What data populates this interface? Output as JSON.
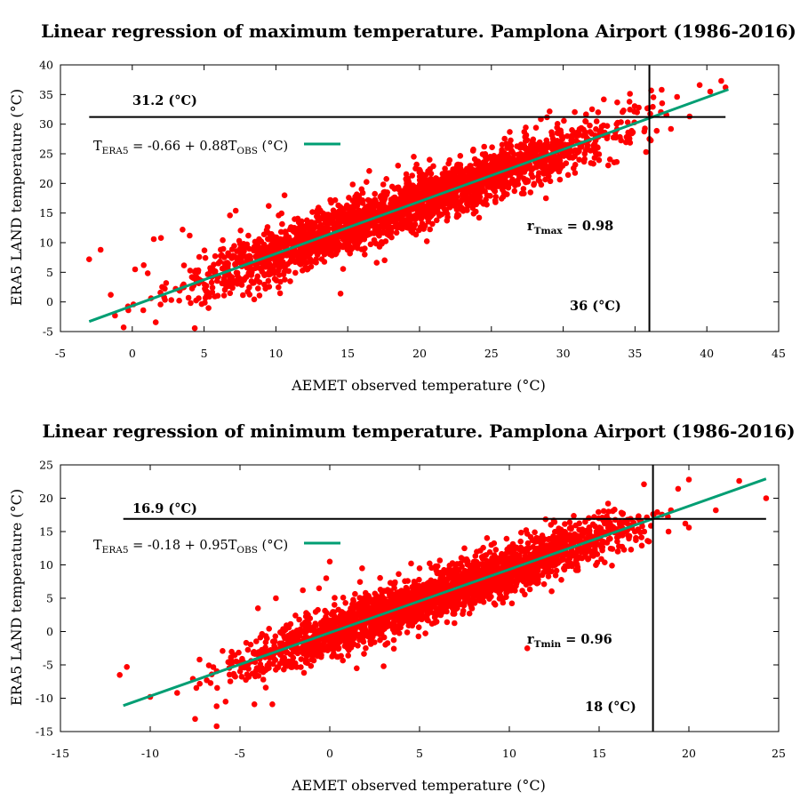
{
  "colors": {
    "points": "#ff0000",
    "fit_line": "#009e73",
    "ref_lines": "#000000"
  },
  "chart_data": [
    {
      "type": "scatter",
      "title": "Linear regression of maximum temperature. Pamplona Airport (1986-2016)",
      "xlabel": "AEMET observed temperature (°C)",
      "ylabel": "ERA5 LAND temperature (°C)",
      "xlim": [
        -5,
        45
      ],
      "ylim": [
        -5,
        40
      ],
      "x_ticks": [
        -5,
        0,
        5,
        10,
        15,
        20,
        25,
        30,
        35,
        40,
        45
      ],
      "y_ticks": [
        -5,
        0,
        5,
        10,
        15,
        20,
        25,
        30,
        35,
        40
      ],
      "grid": false,
      "legend_position": "top-left",
      "point_cloud": {
        "x_range": [
          -3,
          41.5
        ],
        "intercept": -0.66,
        "slope": 0.88,
        "spread": 2.2,
        "count": 2600
      },
      "outliers": [
        [
          -3,
          7.2
        ],
        [
          -2.2,
          8.8
        ],
        [
          -1.5,
          1.2
        ],
        [
          -0.6,
          -4.3
        ],
        [
          -1.2,
          -2.3
        ],
        [
          0.2,
          5.5
        ],
        [
          0.8,
          6.2
        ],
        [
          1.5,
          10.6
        ],
        [
          2,
          10.8
        ],
        [
          3.5,
          12.2
        ],
        [
          4,
          11.2
        ],
        [
          6.8,
          14.6
        ],
        [
          7.2,
          15.4
        ],
        [
          9.5,
          16.2
        ],
        [
          10.6,
          18
        ],
        [
          14.5,
          1.4
        ],
        [
          16.5,
          22.1
        ],
        [
          18.5,
          23
        ],
        [
          19.6,
          24.5
        ],
        [
          20.7,
          24
        ],
        [
          24.5,
          26.2
        ],
        [
          26,
          19.5
        ],
        [
          28.8,
          17.5
        ],
        [
          31.5,
          25
        ],
        [
          36,
          27.5
        ],
        [
          37.5,
          29.2
        ],
        [
          39.5,
          36.6
        ],
        [
          41,
          37.3
        ],
        [
          41.3,
          36.2
        ],
        [
          38.8,
          31.3
        ]
      ],
      "fit": {
        "x": [
          -3,
          41.5
        ],
        "intercept": -0.66,
        "slope": 0.88,
        "legend": {
          "base": "T",
          "sub1": "ERA5",
          "eq_mid": " = -0.66 + 0.88T",
          "sub2": "OBS",
          "unit": " (°C)"
        }
      },
      "hline": {
        "y": 31.2,
        "x_range": [
          -3,
          41.3
        ],
        "label": "31.2 (°C)"
      },
      "vline": {
        "x": 36,
        "label": "36 (°C)"
      },
      "r_label": {
        "base": "r",
        "sub": "Tmax",
        "value": " = 0.98"
      }
    },
    {
      "type": "scatter",
      "title": "Linear regression of minimum temperature. Pamplona Airport (1986-2016)",
      "xlabel": "AEMET observed temperature (°C)",
      "ylabel": "ERA5 LAND temperature (°C)",
      "xlim": [
        -15,
        25
      ],
      "ylim": [
        -15,
        25
      ],
      "x_ticks": [
        -15,
        -10,
        -5,
        0,
        5,
        10,
        15,
        20,
        25
      ],
      "y_ticks": [
        -15,
        -10,
        -5,
        0,
        5,
        10,
        15,
        20,
        25
      ],
      "grid": false,
      "legend_position": "top-left",
      "point_cloud": {
        "x_range": [
          -10,
          22
        ],
        "intercept": -0.18,
        "slope": 0.95,
        "spread": 1.8,
        "count": 2600
      },
      "outliers": [
        [
          -11.7,
          -6.5
        ],
        [
          -11.3,
          -5.3
        ],
        [
          -10,
          -9.8
        ],
        [
          -8.5,
          -9.2
        ],
        [
          -7.5,
          -13.1
        ],
        [
          -6.3,
          -14.2
        ],
        [
          -6.3,
          -11.2
        ],
        [
          -5.8,
          -10.5
        ],
        [
          -4.2,
          -10.9
        ],
        [
          -3.2,
          -10.9
        ],
        [
          -4,
          3.5
        ],
        [
          -3,
          5
        ],
        [
          -1.5,
          6.2
        ],
        [
          -0.6,
          6.5
        ],
        [
          -0.2,
          8
        ],
        [
          0,
          10.5
        ],
        [
          1.5,
          -5.5
        ],
        [
          1.8,
          9.5
        ],
        [
          3,
          -5.2
        ],
        [
          5,
          9.5
        ],
        [
          7.5,
          12.5
        ],
        [
          9,
          13
        ],
        [
          11,
          -2.5
        ],
        [
          15.5,
          19.2
        ],
        [
          17.5,
          22.1
        ],
        [
          20,
          22.8
        ],
        [
          22.8,
          22.6
        ],
        [
          24.3,
          20
        ],
        [
          21.5,
          18.2
        ],
        [
          20,
          15.6
        ],
        [
          19.8,
          16.2
        ]
      ],
      "fit": {
        "x": [
          -11.5,
          24.3
        ],
        "intercept": -0.18,
        "slope": 0.95,
        "legend": {
          "base": "T",
          "sub1": "ERA5",
          "eq_mid": " = -0.18 + 0.95T",
          "sub2": "OBS",
          "unit": " (°C)"
        }
      },
      "hline": {
        "y": 16.9,
        "x_range": [
          -11.5,
          24.3
        ],
        "label": "16.9 (°C)"
      },
      "vline": {
        "x": 18,
        "label": "18 (°C)"
      },
      "r_label": {
        "base": "r",
        "sub": "Tmin",
        "value": " = 0.96"
      }
    }
  ]
}
